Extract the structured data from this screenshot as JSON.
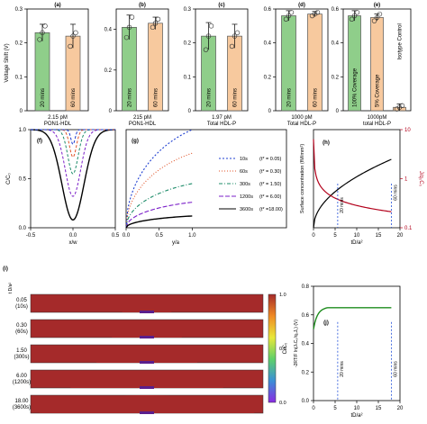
{
  "colors": {
    "green": "#8fce8a",
    "peach": "#f7c99e",
    "bar_edge": "#555555",
    "curve_red": "#b3001b",
    "curve_green": "#1e8c1e",
    "axis": "#000000",
    "vline": "#1f4ed8"
  },
  "chart_data": [
    {
      "type": "bar",
      "panel": "(a)",
      "ylabel": "Voltage Shift (V)",
      "ylim": [
        0,
        0.3
      ],
      "yticks": [
        "0",
        "0.1",
        "0.2",
        "0.3"
      ],
      "categories": [
        "20 mins",
        "60 mins"
      ],
      "values": [
        0.23,
        0.22
      ],
      "errors": [
        0.025,
        0.035
      ],
      "points": [
        [
          0.21,
          0.23,
          0.25
        ],
        [
          0.19,
          0.22,
          0.23
        ]
      ],
      "xlabel": [
        "2.15 pM",
        "PON1-HDL"
      ]
    },
    {
      "type": "bar",
      "panel": "(b)",
      "ylim": [
        0,
        0.5
      ],
      "yticks": [
        "0",
        "0.2",
        "0.4"
      ],
      "categories": [
        "20 mins",
        "60 mins"
      ],
      "values": [
        0.41,
        0.43
      ],
      "errors": [
        0.06,
        0.03
      ],
      "points": [
        [
          0.36,
          0.41,
          0.46
        ],
        [
          0.41,
          0.43,
          0.45
        ]
      ],
      "xlabel": [
        "215 pM",
        "PON1-HDL"
      ]
    },
    {
      "type": "bar",
      "panel": "(c)",
      "ylim": [
        0,
        0.3
      ],
      "yticks": [
        "0",
        "0.1",
        "0.2",
        "0.3"
      ],
      "categories": [
        "20 mins",
        "60 mins"
      ],
      "values": [
        0.22,
        0.22
      ],
      "errors": [
        0.04,
        0.035
      ],
      "points": [
        [
          0.18,
          0.22,
          0.25
        ],
        [
          0.19,
          0.22,
          0.23
        ]
      ],
      "xlabel": [
        "1.97 pM",
        "Total HDL-P"
      ]
    },
    {
      "type": "bar",
      "panel": "(d)",
      "ylim": [
        0,
        0.6
      ],
      "yticks": [
        "0",
        "0.2",
        "0.4",
        "0.6"
      ],
      "categories": [
        "20 mins",
        "60 mins"
      ],
      "values": [
        0.56,
        0.57
      ],
      "errors": [
        0.03,
        0.015
      ],
      "points": [
        [
          0.54,
          0.56,
          0.58
        ],
        [
          0.56,
          0.57,
          0.58
        ]
      ],
      "xlabel": [
        "1000 pM",
        "Total HDL-P"
      ]
    },
    {
      "type": "bar",
      "panel": "(e)",
      "ylim": [
        0,
        0.6
      ],
      "yticks": [
        "0",
        "0.2",
        "0.4",
        "0.6"
      ],
      "categories": [
        "100% Coverage",
        "5% Coverage",
        "Isotype Control"
      ],
      "values": [
        0.56,
        0.55,
        0.02
      ],
      "errors": [
        0.03,
        0.02,
        0.02
      ],
      "points": [
        [
          0.54,
          0.56,
          0.58
        ],
        [
          0.53,
          0.55,
          0.57
        ],
        [
          0.01,
          0.02,
          0.03
        ]
      ],
      "xlabel": [
        "1000pM",
        "total HDL-P"
      ]
    },
    {
      "type": "line",
      "panel": "(f)",
      "ylabel": "C/C₀",
      "xlabel": "x/w",
      "xlim": [
        -0.5,
        0.5
      ],
      "ylim": [
        0,
        1
      ],
      "xticks": [
        "-0.5",
        "0.0",
        "0.5"
      ],
      "yticks": [
        "0.0",
        "0.5",
        "1.0"
      ],
      "series": [
        {
          "style": "black",
          "min": 0.08
        },
        {
          "style": "purple",
          "min": 0.32
        },
        {
          "style": "green",
          "min": 0.55
        },
        {
          "style": "red",
          "min": 0.72
        },
        {
          "style": "blue",
          "min": 0.85
        }
      ]
    },
    {
      "type": "line",
      "panel": "(g)",
      "xlabel": "y/a",
      "xlim": [
        0,
        1
      ],
      "ylim": [
        0,
        1
      ],
      "xticks": [
        "0.0",
        "0.5",
        "1.0"
      ],
      "series": [
        {
          "name": "10s",
          "tstar": "(t* = 0.05)",
          "end": 1.0,
          "color": "#1f3fd1"
        },
        {
          "name": "60s",
          "tstar": "(t* = 0.30)",
          "end": 0.76,
          "color": "#e0552a"
        },
        {
          "name": "300s",
          "tstar": "(t* = 1.50)",
          "end": 0.45,
          "color": "#1e8c6a"
        },
        {
          "name": "1200s",
          "tstar": "(t* = 6.00)",
          "end": 0.26,
          "color": "#7b1fc9"
        },
        {
          "name": "3600s",
          "tstar": "(t* =18.00)",
          "end": 0.12,
          "color": "#000000"
        }
      ]
    },
    {
      "type": "line",
      "panel": "(h)",
      "ylabel": "Surface concentration (fM/mm²)",
      "ylabel_right": "J/q₀C₀",
      "xlabel": "tD/a²",
      "xlim": [
        0,
        20
      ],
      "ylim_right": [
        "0.1",
        "1",
        "10"
      ],
      "xticks": [
        "0",
        "5",
        "10",
        "15",
        "20"
      ],
      "annotations": [
        "20 mins",
        "60 mins"
      ],
      "vlines": [
        5.6,
        18
      ]
    },
    {
      "type": "heatmap",
      "panel": "(i)",
      "ylabel": "t D/a²",
      "rows": [
        {
          "t": "0.05",
          "s": "(10s)",
          "r": 0.15
        },
        {
          "t": "0.30",
          "s": "(60s)",
          "r": 0.25
        },
        {
          "t": "1.50",
          "s": "(300s)",
          "r": 0.4
        },
        {
          "t": "6.00",
          "s": "(1200s)",
          "r": 0.65
        },
        {
          "t": "18.00",
          "s": "(3600s)",
          "r": 0.95
        }
      ],
      "colorbar": {
        "label": "C/C₀",
        "ticks": [
          "1.0",
          "0.5",
          "0.0"
        ]
      }
    },
    {
      "type": "line",
      "panel": "(j)",
      "ylabel": "-2RT/F ln(JₛC₀/q₀J₀) (V)",
      "xlabel": "tD/a²",
      "xlim": [
        0,
        20
      ],
      "ylim": [
        0,
        0.8
      ],
      "yticks": [
        "0.0",
        "0.2",
        "0.4",
        "0.6",
        "0.8"
      ],
      "xticks": [
        "0",
        "5",
        "10",
        "15",
        "20"
      ],
      "annotations": [
        "20 mins",
        "60 mins"
      ],
      "vlines": [
        5.6,
        18
      ]
    }
  ]
}
